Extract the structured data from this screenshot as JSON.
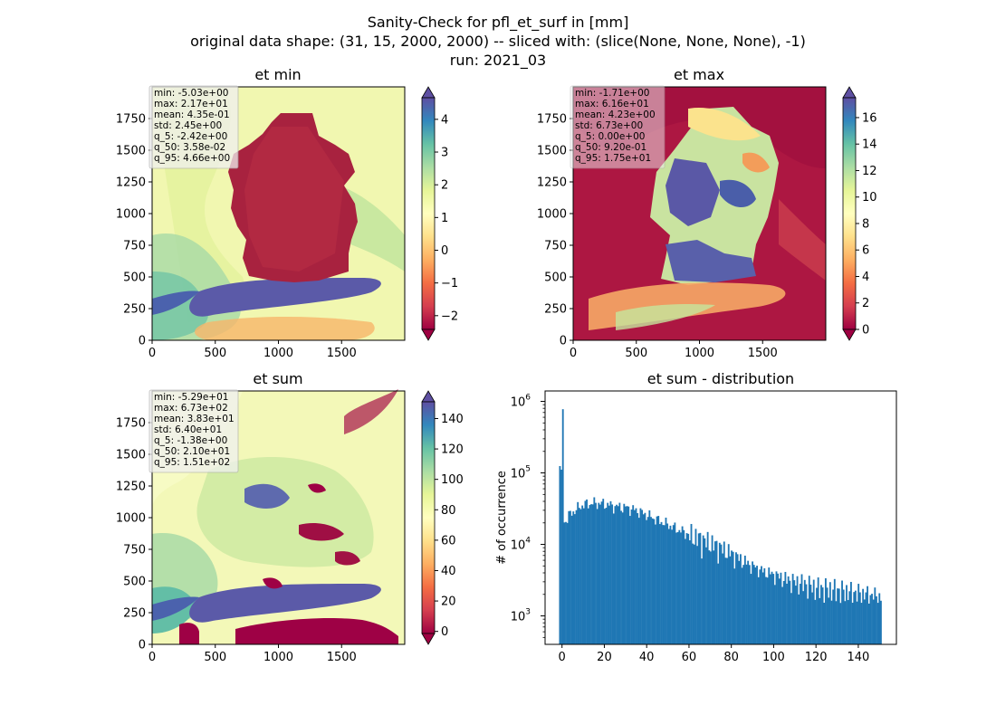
{
  "figure": {
    "suptitle": [
      "Sanity-Check for pfl_et_surf in [mm]",
      "original data shape: (31, 15, 2000, 2000) -- sliced with: (slice(None, None, None), -1)",
      "run: 2021_03"
    ]
  },
  "chart_data": [
    {
      "type": "heatmap",
      "title": "et min",
      "colormap": "Spectral",
      "xlim": [
        0,
        2000
      ],
      "ylim": [
        0,
        2000
      ],
      "xticks": [
        0,
        500,
        1000,
        1500
      ],
      "yticks": [
        0,
        250,
        500,
        750,
        1000,
        1250,
        1500,
        1750
      ],
      "colorbar": {
        "range": [
          -2.42,
          4.66
        ],
        "ticks": [
          -2,
          -1,
          0,
          1,
          2,
          3,
          4
        ],
        "tick_labels": [
          "−2",
          "−1",
          "0",
          "1",
          "2",
          "3",
          "4"
        ],
        "extend": "both"
      },
      "stats": [
        "min: -5.03e+00",
        "max: 2.17e+01",
        "mean: 4.35e-01",
        "std: 2.45e+00",
        "q_5: -2.42e+00",
        "q_50: 3.58e-02",
        "q_95: 4.66e+00"
      ]
    },
    {
      "type": "heatmap",
      "title": "et max",
      "colormap": "Spectral",
      "xlim": [
        0,
        2000
      ],
      "ylim": [
        0,
        2000
      ],
      "xticks": [
        0,
        500,
        1000,
        1500
      ],
      "yticks": [
        0,
        250,
        500,
        750,
        1000,
        1250,
        1500,
        1750
      ],
      "colorbar": {
        "range": [
          0,
          17.5
        ],
        "ticks": [
          0,
          2,
          4,
          6,
          8,
          10,
          12,
          14,
          16
        ],
        "tick_labels": [
          "0",
          "2",
          "4",
          "6",
          "8",
          "10",
          "12",
          "14",
          "16"
        ],
        "extend": "both"
      },
      "stats": [
        "min: -1.71e+00",
        "max: 6.16e+01",
        "mean: 4.23e+00",
        "std: 6.73e+00",
        "q_5: 0.00e+00",
        "q_50: 9.20e-01",
        "q_95: 1.75e+01"
      ]
    },
    {
      "type": "heatmap",
      "title": "et sum",
      "colormap": "Spectral",
      "xlim": [
        0,
        2000
      ],
      "ylim": [
        0,
        2000
      ],
      "xticks": [
        0,
        500,
        1000,
        1500
      ],
      "yticks": [
        0,
        250,
        500,
        750,
        1000,
        1250,
        1500,
        1750
      ],
      "colorbar": {
        "range": [
          -1.38,
          151
        ],
        "ticks": [
          0,
          20,
          40,
          60,
          80,
          100,
          120,
          140
        ],
        "tick_labels": [
          "0",
          "20",
          "40",
          "60",
          "80",
          "100",
          "120",
          "140"
        ],
        "extend": "both"
      },
      "stats": [
        "min: -5.29e+01",
        "max: 6.73e+02",
        "mean: 3.83e+01",
        "std: 6.40e+01",
        "q_5: -1.38e+00",
        "q_50: 2.10e+01",
        "q_95: 1.51e+02"
      ]
    },
    {
      "type": "bar",
      "title": "et sum - distribution",
      "ylabel": "# of occurrence",
      "xlabel": "",
      "yscale": "log",
      "xlim": [
        -8,
        158
      ],
      "ylim": [
        400,
        1400000
      ],
      "xticks": [
        0,
        20,
        40,
        60,
        80,
        100,
        120,
        140
      ],
      "yticks": [
        1000,
        10000,
        100000,
        1000000
      ],
      "ytick_labels": [
        [
          "10",
          "3"
        ],
        [
          "10",
          "4"
        ],
        [
          "10",
          "5"
        ],
        [
          "10",
          "6"
        ]
      ],
      "bar_color": "#1f77b4",
      "bin_range": [
        -1.38,
        151
      ],
      "counts_anchor_x": [
        -1.4,
        -0.7,
        0,
        1,
        3,
        6,
        10,
        15,
        20,
        25,
        30,
        35,
        40,
        45,
        50,
        55,
        60,
        65,
        70,
        75,
        80,
        85,
        90,
        95,
        100,
        105,
        110,
        115,
        120,
        125,
        130,
        135,
        140,
        145,
        150,
        151
      ],
      "counts_anchor_y": [
        15000,
        800000,
        15000,
        20000,
        25000,
        30000,
        36000,
        38000,
        37000,
        34000,
        33000,
        30000,
        26000,
        22000,
        19000,
        16000,
        14000,
        12000,
        10500,
        9000,
        7500,
        6000,
        5000,
        4200,
        3800,
        3300,
        3000,
        2800,
        2500,
        2400,
        2300,
        2200,
        2100,
        2000,
        1900,
        1800
      ]
    }
  ]
}
